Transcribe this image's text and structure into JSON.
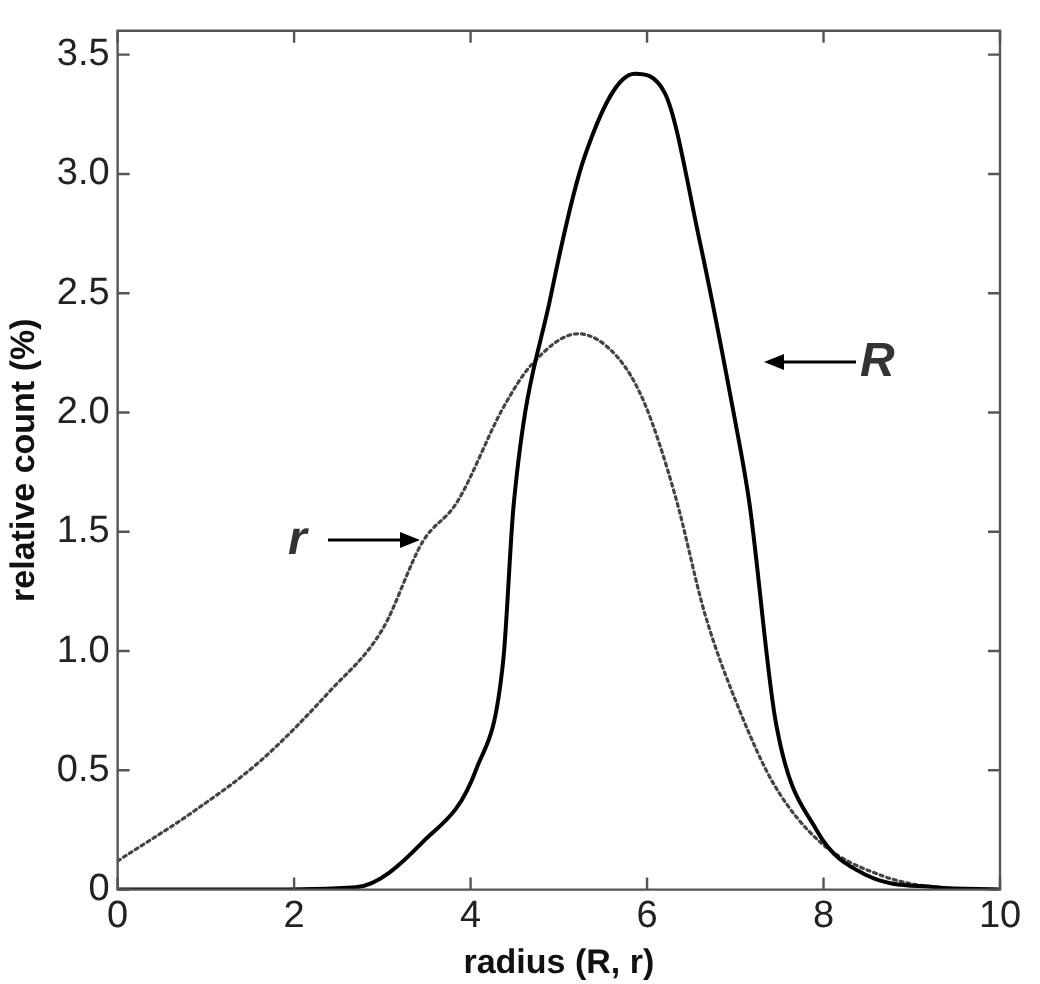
{
  "chart_data": {
    "type": "line",
    "xlabel": "radius (R, r)",
    "ylabel": "relative count (%)",
    "xlim": [
      0,
      10
    ],
    "xticks": [
      0,
      2,
      4,
      6,
      8,
      10
    ],
    "ylim": [
      0,
      3.6
    ],
    "yticks": [
      0,
      0.5,
      {
        "value": 1,
        "label": "1.0"
      },
      1.5,
      {
        "value": 2,
        "label": "2.0"
      },
      2.5,
      {
        "value": 3,
        "label": "3.0"
      },
      3.5
    ],
    "grid": false,
    "legend": false,
    "marker": "none",
    "series": [
      {
        "color": "#000000",
        "line_style": "solid",
        "x": [
          0,
          1.56,
          2.7,
          3.46,
          4.07,
          4.37,
          4.49,
          4.91,
          5.29,
          5.86,
          6.2,
          6.59,
          6.97,
          7.16,
          7.46,
          7.92,
          8.49,
          9.27,
          10
        ],
        "values": [
          0,
          0,
          0.01,
          0.2,
          0.51,
          0.96,
          1.62,
          2.49,
          3.07,
          3.42,
          3.34,
          2.73,
          2.02,
          1.62,
          0.7,
          0.25,
          0.06,
          0.01,
          0
        ]
      },
      {
        "color": "#444444",
        "line_style": "dotted",
        "x": [
          0,
          0.87,
          1.62,
          2.4,
          3.0,
          3.46,
          3.84,
          4.37,
          4.69,
          5.22,
          5.67,
          5.97,
          6.32,
          6.66,
          7.05,
          7.44,
          7.96,
          8.65,
          9.27,
          10
        ],
        "values": [
          0.12,
          0.33,
          0.54,
          0.83,
          1.09,
          1.46,
          1.62,
          2.02,
          2.2,
          2.33,
          2.23,
          2.04,
          1.65,
          1.15,
          0.75,
          0.44,
          0.2,
          0.06,
          0.01,
          0
        ]
      }
    ],
    "annotations": [
      "R",
      "r"
    ]
  }
}
